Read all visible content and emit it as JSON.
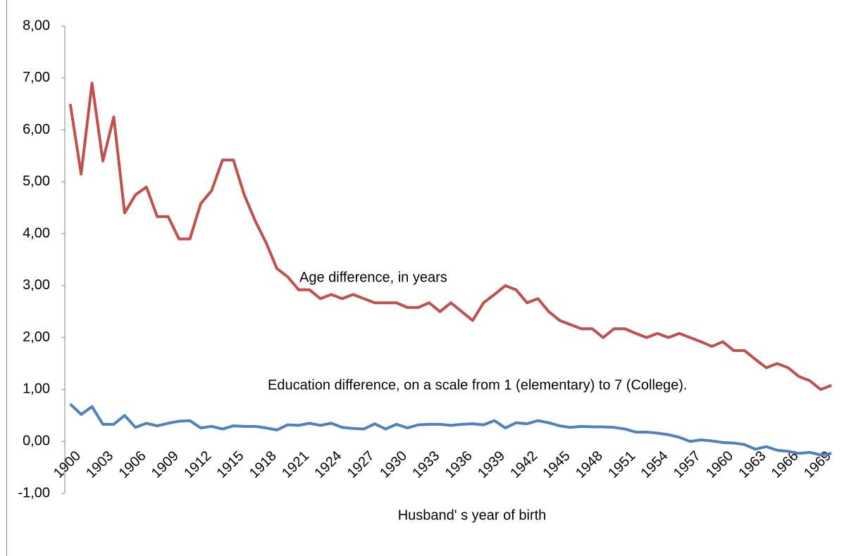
{
  "chart_data": {
    "type": "line",
    "x_label": "Husband' s year of birth",
    "categories": [
      "1900",
      null,
      null,
      "1903",
      null,
      null,
      "1906",
      null,
      null,
      "1909",
      null,
      null,
      "1912",
      null,
      null,
      "1915",
      null,
      null,
      "1918",
      null,
      null,
      "1921",
      null,
      null,
      "1924",
      null,
      null,
      "1927",
      null,
      null,
      "1930",
      null,
      null,
      "1933",
      null,
      null,
      "1936",
      null,
      null,
      "1939",
      null,
      null,
      "1942",
      null,
      null,
      "1945",
      null,
      null,
      "1948",
      null,
      null,
      "1951",
      null,
      null,
      "1954",
      null,
      null,
      "1957",
      null,
      null,
      "1960",
      null,
      null,
      "1963",
      null,
      null,
      "1966",
      null,
      null,
      "1969",
      null
    ],
    "series": [
      {
        "name": "Age difference, in years",
        "color": "#c0504d",
        "values": [
          6.5,
          5.15,
          6.9,
          5.4,
          6.25,
          4.4,
          4.75,
          4.9,
          4.33,
          4.33,
          3.9,
          3.9,
          4.58,
          4.83,
          5.42,
          5.42,
          4.75,
          4.25,
          3.83,
          3.33,
          3.17,
          2.92,
          2.92,
          2.75,
          2.83,
          2.75,
          2.83,
          2.75,
          2.67,
          2.67,
          2.67,
          2.58,
          2.58,
          2.67,
          2.5,
          2.67,
          2.5,
          2.33,
          2.67,
          2.83,
          3.0,
          2.92,
          2.67,
          2.75,
          2.5,
          2.33,
          2.25,
          2.17,
          2.17,
          2.0,
          2.17,
          2.17,
          2.08,
          2.0,
          2.08,
          2.0,
          2.08,
          2.0,
          1.92,
          1.83,
          1.92,
          1.75,
          1.75,
          1.58,
          1.42,
          1.5,
          1.42,
          1.25,
          1.17,
          1.0,
          1.08
        ]
      },
      {
        "name": "Education difference, on a scale from 1 (elementary)  to 7 (College).",
        "color": "#4f81bd",
        "values": [
          0.72,
          0.52,
          0.67,
          0.33,
          0.33,
          0.5,
          0.27,
          0.35,
          0.3,
          0.35,
          0.39,
          0.4,
          0.26,
          0.29,
          0.24,
          0.3,
          0.29,
          0.29,
          0.26,
          0.22,
          0.32,
          0.31,
          0.35,
          0.31,
          0.35,
          0.27,
          0.25,
          0.24,
          0.34,
          0.24,
          0.33,
          0.26,
          0.32,
          0.33,
          0.33,
          0.31,
          0.33,
          0.34,
          0.32,
          0.4,
          0.26,
          0.36,
          0.34,
          0.4,
          0.36,
          0.3,
          0.27,
          0.29,
          0.28,
          0.28,
          0.27,
          0.24,
          0.18,
          0.18,
          0.16,
          0.13,
          0.08,
          0.0,
          0.03,
          0.01,
          -0.02,
          -0.03,
          -0.06,
          -0.15,
          -0.1,
          -0.17,
          -0.19,
          -0.23,
          -0.21,
          -0.26,
          -0.23
        ]
      }
    ],
    "ylim": [
      -1,
      8
    ],
    "yticks": [
      {
        "value": -1,
        "label": "-1,00"
      },
      {
        "value": 0,
        "label": "0,00"
      },
      {
        "value": 1,
        "label": "1,00"
      },
      {
        "value": 2,
        "label": "2,00"
      },
      {
        "value": 3,
        "label": "3,00"
      },
      {
        "value": 4,
        "label": "4,00"
      },
      {
        "value": 5,
        "label": "5,00"
      },
      {
        "value": 6,
        "label": "6,00"
      },
      {
        "value": 7,
        "label": "7,00"
      },
      {
        "value": 8,
        "label": "8,00"
      }
    ],
    "grid": false
  }
}
